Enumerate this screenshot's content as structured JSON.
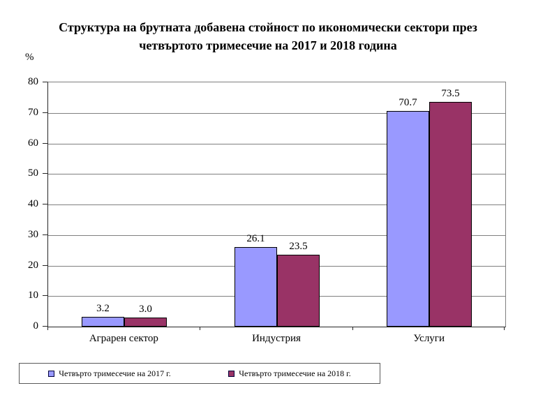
{
  "chart_data": {
    "type": "bar",
    "title": "Структура на брутната добавена стойност по икономически сектори през четвъртото тримесечие на 2017 и 2018 година",
    "title_lines": [
      "Структура на брутната добавена стойност по икономически сектори през",
      "четвъртото тримесечие на 2017 и 2018 година"
    ],
    "ylabel": "%",
    "categories": [
      "Аграрен сектор",
      "Индустрия",
      "Услуги"
    ],
    "series": [
      {
        "name": "Четвърто тримесечие на 2017 г.",
        "color": "#9999FF",
        "values": [
          3.2,
          26.1,
          70.7
        ]
      },
      {
        "name": "Четвърто тримесечие на 2018 г.",
        "color": "#993366",
        "values": [
          3.0,
          23.5,
          73.5
        ]
      }
    ],
    "ylim": [
      0,
      80
    ],
    "yticks": [
      0,
      10,
      20,
      30,
      40,
      50,
      60,
      70,
      80
    ],
    "grid": true,
    "legend_position": "bottom",
    "value_labels": true
  }
}
